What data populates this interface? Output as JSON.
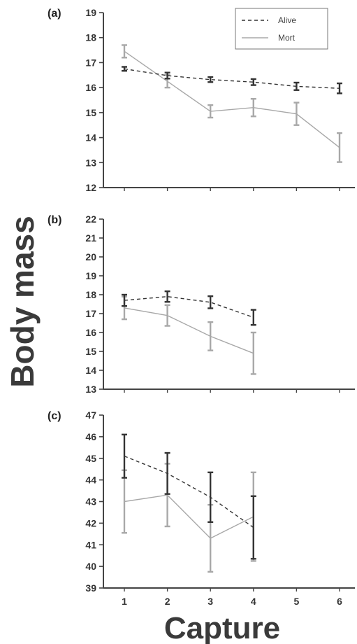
{
  "chart_data": [
    {
      "type": "line",
      "panel_label": "(a)",
      "ylim": [
        12,
        19
      ],
      "yticks": [
        12,
        13,
        14,
        15,
        16,
        17,
        18,
        19
      ],
      "x": [
        1,
        2,
        3,
        4,
        5,
        6
      ],
      "legend": {
        "placement": "top-right",
        "entries": [
          "Alive",
          "Mort"
        ]
      },
      "series": [
        {
          "name": "Alive",
          "style": "dashed",
          "color": "#333333",
          "values": [
            16.75,
            16.48,
            16.32,
            16.22,
            16.05,
            15.97
          ],
          "error": [
            0.08,
            0.12,
            0.1,
            0.12,
            0.15,
            0.2
          ]
        },
        {
          "name": "Mort",
          "style": "solid",
          "color": "#a8a8a8",
          "values": [
            17.45,
            16.25,
            15.05,
            15.2,
            14.95,
            13.6
          ],
          "error": [
            0.25,
            0.25,
            0.25,
            0.35,
            0.45,
            0.58
          ]
        }
      ]
    },
    {
      "type": "line",
      "panel_label": "(b)",
      "ylim": [
        13,
        22
      ],
      "yticks": [
        13,
        14,
        15,
        16,
        17,
        18,
        19,
        20,
        21,
        22
      ],
      "x": [
        1,
        2,
        3,
        4
      ],
      "series": [
        {
          "name": "Alive",
          "style": "dashed",
          "color": "#333333",
          "values": [
            17.7,
            17.9,
            17.6,
            16.8
          ],
          "error": [
            0.3,
            0.28,
            0.32,
            0.4
          ]
        },
        {
          "name": "Mort",
          "style": "solid",
          "color": "#a8a8a8",
          "values": [
            17.3,
            16.9,
            15.8,
            14.9
          ],
          "error": [
            0.6,
            0.55,
            0.75,
            1.1
          ]
        }
      ]
    },
    {
      "type": "line",
      "panel_label": "(c)",
      "ylim": [
        39,
        47
      ],
      "yticks": [
        39,
        40,
        41,
        42,
        43,
        44,
        45,
        46,
        47
      ],
      "x": [
        1,
        2,
        3,
        4
      ],
      "series": [
        {
          "name": "Alive",
          "style": "dashed",
          "color": "#333333",
          "values": [
            45.1,
            44.3,
            43.2,
            41.8
          ],
          "error": [
            1.0,
            0.95,
            1.15,
            1.45
          ]
        },
        {
          "name": "Mort",
          "style": "solid",
          "color": "#a8a8a8",
          "values": [
            43.0,
            43.3,
            41.3,
            42.3
          ],
          "error": [
            1.45,
            1.45,
            1.55,
            2.05
          ]
        }
      ]
    }
  ],
  "xaxis": {
    "label": "Capture",
    "ticks": [
      1,
      2,
      3,
      4,
      5,
      6
    ]
  },
  "yaxis": {
    "label": "Body mass"
  }
}
